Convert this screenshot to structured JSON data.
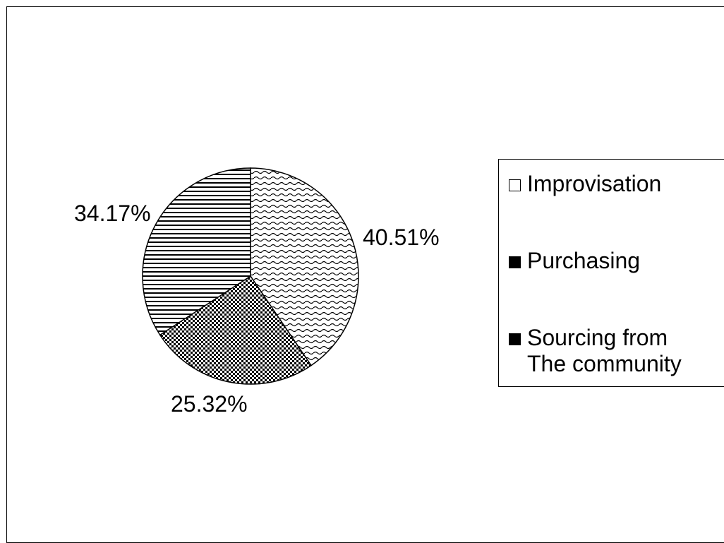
{
  "chart_data": {
    "type": "pie",
    "title": "",
    "slices": [
      {
        "name": "Improvisation",
        "value": 40.51,
        "label": "40.51%",
        "pattern": "wave",
        "swatch_fill": "#ffffff"
      },
      {
        "name": "Purchasing",
        "value": 25.32,
        "label": "25.32%",
        "pattern": "checker",
        "swatch_fill": "#000000"
      },
      {
        "name": "Sourcing from The community",
        "value": 34.17,
        "label": "34.17%",
        "pattern": "horizontal-lines",
        "swatch_fill": "#000000"
      }
    ],
    "start_angle": "12 o'clock",
    "direction": "clockwise",
    "legend_position": "right",
    "legend": {
      "items": [
        {
          "lines": [
            "Improvisation"
          ]
        },
        {
          "lines": [
            "Purchasing"
          ]
        },
        {
          "lines": [
            "Sourcing from",
            "The community"
          ]
        }
      ]
    }
  },
  "colors": {
    "stroke": "#000000",
    "background": "#ffffff"
  }
}
